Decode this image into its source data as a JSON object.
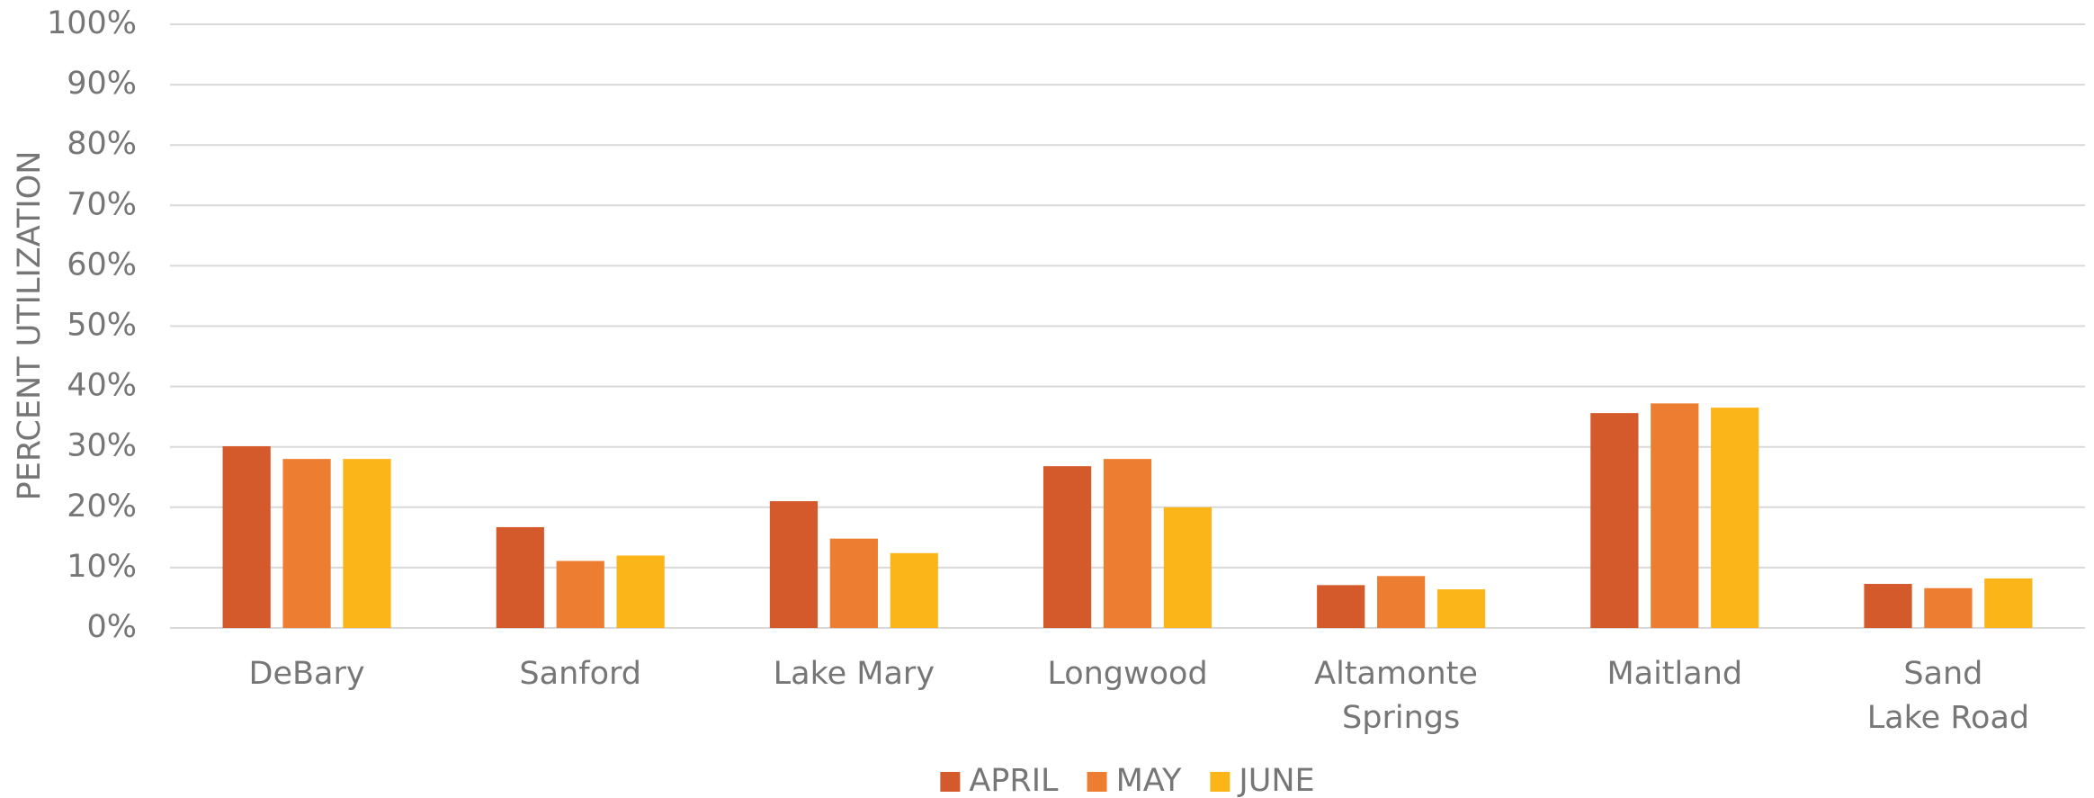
{
  "chart_data": {
    "type": "bar",
    "y_label": "PERCENT UTILIZATION",
    "categories": [
      "DeBary",
      "Sanford",
      "Lake Mary",
      "Longwood",
      "Altamonte Springs",
      "Maitland",
      "Sand Lake Road"
    ],
    "series": [
      {
        "name": "APRIL",
        "color": "#d45a2b",
        "values": [
          30.1,
          16.7,
          21,
          26.8,
          7.1,
          35.6,
          7.3
        ]
      },
      {
        "name": "MAY",
        "color": "#ec7d31",
        "values": [
          28,
          11.1,
          14.8,
          28,
          8.6,
          37.2,
          6.6
        ]
      },
      {
        "name": "JUNE",
        "color": "#fbb519",
        "values": [
          28,
          12,
          12.4,
          20,
          6.4,
          36.5,
          8.2
        ]
      }
    ],
    "ylim": [
      0,
      100
    ],
    "yticks": [
      {
        "value": 0,
        "label": "0%"
      },
      {
        "value": 10,
        "label": "10%"
      },
      {
        "value": 20,
        "label": "20%"
      },
      {
        "value": 30,
        "label": "30%"
      },
      {
        "value": 40,
        "label": "40%"
      },
      {
        "value": 50,
        "label": "50%"
      },
      {
        "value": 60,
        "label": "60%"
      },
      {
        "value": 70,
        "label": "70%"
      },
      {
        "value": 80,
        "label": "80%"
      },
      {
        "value": 90,
        "label": "90%"
      },
      {
        "value": 100,
        "label": "100%"
      }
    ],
    "grid": true,
    "legend": "bottom"
  }
}
